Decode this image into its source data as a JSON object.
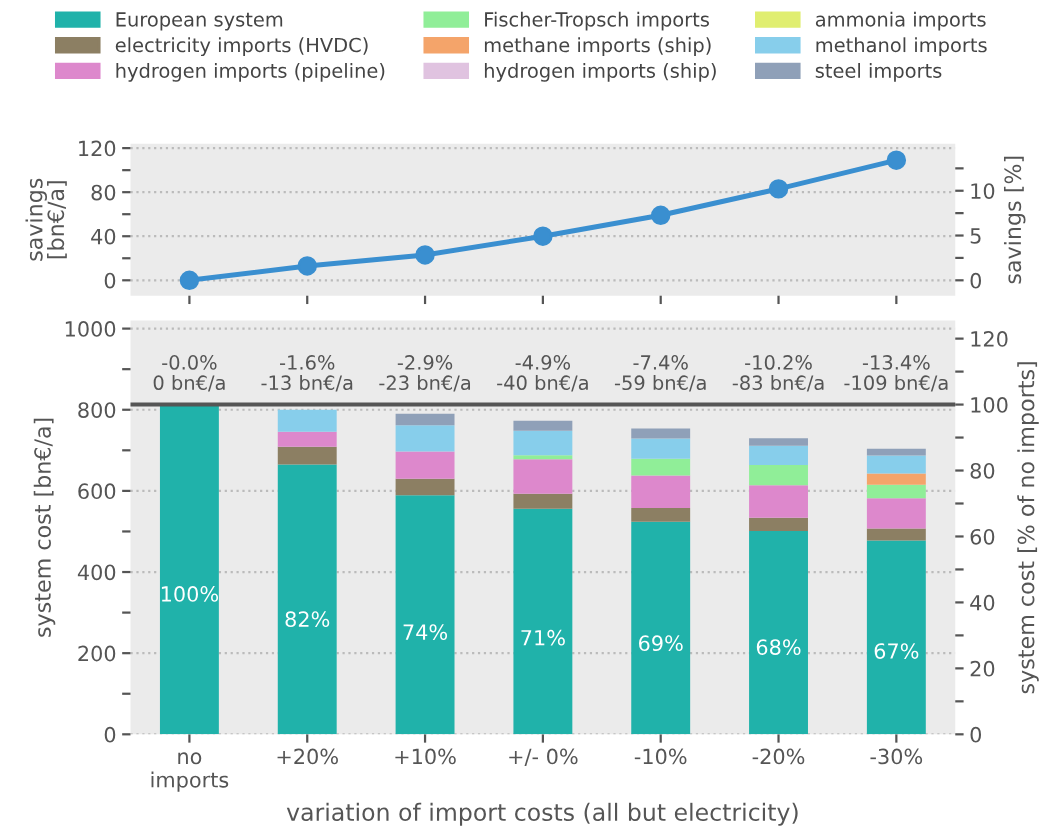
{
  "chart_data": [
    {
      "type": "line",
      "categories": [
        null,
        null,
        null,
        null,
        null,
        null,
        null
      ],
      "ylabel": "savings\n[bn€/a]",
      "y2label": "savings [%]",
      "ylim": [
        -14,
        124
      ],
      "yticks": [
        0,
        {
          "value": 20,
          "label": null
        },
        40,
        {
          "value": 60,
          "label": null
        },
        80,
        {
          "value": 100,
          "label": null
        },
        120
      ],
      "y2lim": [
        -1.72,
        15.25
      ],
      "y2ticks": [
        0,
        {
          "value": 2.5,
          "label": null
        },
        5,
        {
          "value": 7.5,
          "label": null
        },
        10,
        {
          "value": 12.5,
          "label": null
        }
      ],
      "grid": "y",
      "marker": "circle",
      "line_style": "solid",
      "tick_labels": "y",
      "series": [
        {
          "color": "#3a8fd0",
          "values": [
            0,
            13,
            23,
            40,
            59,
            83,
            109
          ]
        }
      ]
    },
    {
      "type": "bar",
      "stacked": true,
      "categories": [
        "no\nimports",
        "+20%",
        "+10%",
        "+/- 0%",
        "-10%",
        "-20%",
        "-30%"
      ],
      "xlabel": "variation of import costs (all but electricity)",
      "ylabel": "system cost [bn€/a]",
      "y2label": "system cost [% of no imports]",
      "ylim": [
        0,
        1020
      ],
      "yticks": [
        0,
        {
          "value": 100,
          "label": null
        },
        200,
        {
          "value": 300,
          "label": null
        },
        400,
        {
          "value": 500,
          "label": null
        },
        600,
        {
          "value": 700,
          "label": null
        },
        800,
        {
          "value": 900,
          "label": null
        },
        1000
      ],
      "y2lim": [
        0,
        125.5
      ],
      "y2ticks": [
        0,
        {
          "value": 10,
          "label": null
        },
        20,
        {
          "value": 30,
          "label": null
        },
        40,
        {
          "value": 50,
          "label": null
        },
        60,
        {
          "value": 70,
          "label": null
        },
        80,
        {
          "value": 90,
          "label": null
        },
        100,
        {
          "value": 110,
          "label": null
        },
        120
      ],
      "grid": "y",
      "legend": "top",
      "ref_lines": [
        {
          "axis": "y",
          "value": 813,
          "color": "#555555",
          "line_style": "solid"
        }
      ],
      "annotations": [
        "-0.0%\n0 bn€/a",
        "-1.6%\n-13 bn€/a",
        "-2.9%\n-23 bn€/a",
        "-4.9%\n-40 bn€/a",
        "-7.4%\n-59 bn€/a",
        "-10.2%\n-83 bn€/a",
        "-13.4%\n-109 bn€/a",
        "100%",
        "82%",
        "74%",
        "71%",
        "69%",
        "68%",
        "67%"
      ],
      "series": [
        {
          "name": "European system",
          "color": "#20b2aa",
          "values": [
            813,
            665,
            589,
            556,
            524,
            501,
            478
          ]
        },
        {
          "name": "electricity imports (HVDC)",
          "color": "#8c7f63",
          "values": [
            0,
            44,
            41,
            37,
            34,
            33,
            29
          ]
        },
        {
          "name": "hydrogen imports (pipeline)",
          "color": "#dd88cc",
          "values": [
            0,
            37,
            67,
            85,
            80,
            80,
            75
          ]
        },
        {
          "name": "Fischer-Tropsch imports",
          "color": "#90ee98",
          "values": [
            0,
            0,
            0,
            10,
            41,
            50,
            33
          ]
        },
        {
          "name": "methane imports (ship)",
          "color": "#f4a46a",
          "values": [
            0,
            0,
            0,
            0,
            0,
            0,
            28
          ]
        },
        {
          "name": "hydrogen imports (ship)",
          "color": "#e0c3e0",
          "values": [
            0,
            0,
            0,
            0,
            0,
            0,
            0
          ]
        },
        {
          "name": "ammonia imports",
          "color": "#e0ee70",
          "values": [
            0,
            0,
            0,
            0,
            0,
            0,
            0
          ]
        },
        {
          "name": "methanol imports",
          "color": "#87ceeb",
          "values": [
            0,
            54,
            65,
            60,
            50,
            47,
            44
          ]
        },
        {
          "name": "steel imports",
          "color": "#8fa0b8",
          "values": [
            0,
            0,
            28,
            25,
            25,
            19,
            17
          ]
        }
      ]
    }
  ]
}
